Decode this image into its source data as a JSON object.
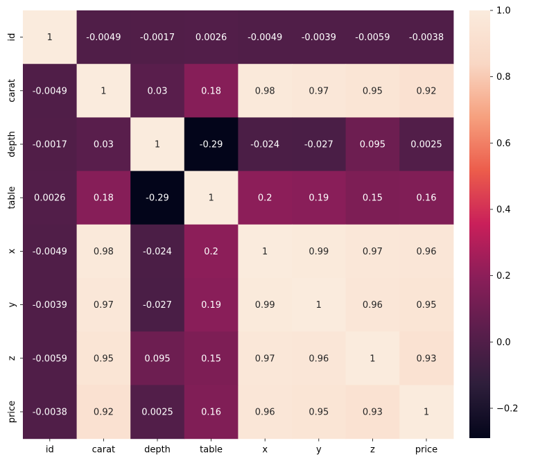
{
  "chart_data": {
    "type": "heatmap",
    "title": "",
    "xlabel": "",
    "ylabel": "",
    "rows": [
      "id",
      "carat",
      "depth",
      "table",
      "x",
      "y",
      "z",
      "price"
    ],
    "columns": [
      "id",
      "carat",
      "depth",
      "table",
      "x",
      "y",
      "z",
      "price"
    ],
    "values": [
      [
        1,
        -0.0049,
        -0.0017,
        0.0026,
        -0.0049,
        -0.0039,
        -0.0059,
        -0.0038
      ],
      [
        -0.0049,
        1,
        0.03,
        0.18,
        0.98,
        0.97,
        0.95,
        0.92
      ],
      [
        -0.0017,
        0.03,
        1,
        -0.29,
        -0.024,
        -0.027,
        0.095,
        0.0025
      ],
      [
        0.0026,
        0.18,
        -0.29,
        1,
        0.2,
        0.19,
        0.15,
        0.16
      ],
      [
        -0.0049,
        0.98,
        -0.024,
        0.2,
        1,
        0.99,
        0.97,
        0.96
      ],
      [
        -0.0039,
        0.97,
        -0.027,
        0.19,
        0.99,
        1,
        0.96,
        0.95
      ],
      [
        -0.0059,
        0.95,
        0.095,
        0.15,
        0.97,
        0.96,
        1,
        0.93
      ],
      [
        -0.0038,
        0.92,
        0.0025,
        0.16,
        0.96,
        0.95,
        0.93,
        1
      ]
    ],
    "annotations": [
      [
        "1",
        "-0.0049",
        "-0.0017",
        "0.0026",
        "-0.0049",
        "-0.0039",
        "-0.0059",
        "-0.0038"
      ],
      [
        "-0.0049",
        "1",
        "0.03",
        "0.18",
        "0.98",
        "0.97",
        "0.95",
        "0.92"
      ],
      [
        "-0.0017",
        "0.03",
        "1",
        "-0.29",
        "-0.024",
        "-0.027",
        "0.095",
        "0.0025"
      ],
      [
        "0.0026",
        "0.18",
        "-0.29",
        "1",
        "0.2",
        "0.19",
        "0.15",
        "0.16"
      ],
      [
        "-0.0049",
        "0.98",
        "-0.024",
        "0.2",
        "1",
        "0.99",
        "0.97",
        "0.96"
      ],
      [
        "-0.0039",
        "0.97",
        "-0.027",
        "0.19",
        "0.99",
        "1",
        "0.96",
        "0.95"
      ],
      [
        "-0.0059",
        "0.95",
        "0.095",
        "0.15",
        "0.97",
        "0.96",
        "1",
        "0.93"
      ],
      [
        "-0.0038",
        "0.92",
        "0.0025",
        "0.16",
        "0.96",
        "0.95",
        "0.93",
        "1"
      ]
    ],
    "colorbar": {
      "range": [
        -0.29,
        1.0
      ],
      "ticks": [
        -0.2,
        0.0,
        0.2,
        0.4,
        0.6,
        0.8,
        1.0
      ],
      "tick_labels": [
        "−0.2",
        "0.0",
        "0.2",
        "0.4",
        "0.6",
        "0.8",
        "1.0"
      ],
      "colormap": "rocket",
      "colormap_stops": [
        "#03051a",
        "#2e1e3b",
        "#5a1e4c",
        "#8a1e59",
        "#c91f5a",
        "#ec5c4b",
        "#f6a07e",
        "#f9d7c4",
        "#faebdd"
      ]
    },
    "annotation_colors": {
      "light_text": "#ffffff",
      "dark_text": "#262626"
    },
    "grid": false,
    "legend": "colorbar-right"
  }
}
